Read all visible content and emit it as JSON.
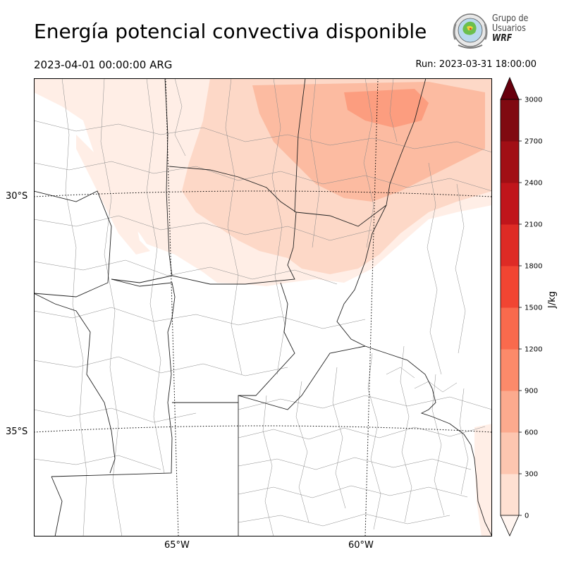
{
  "title": "Energía potencial convectiva disponible",
  "valid_time": "2023-04-01 00:00:00 ARG",
  "run": "Run: 2023-03-31 18:00:00",
  "logo": {
    "line1": "Grupo de",
    "line2": "Usuarios",
    "line3": "WRF"
  },
  "axes": {
    "lat_labels": [
      "30°S",
      "35°S"
    ],
    "lon_labels": [
      "65°W",
      "60°W"
    ]
  },
  "colorbar": {
    "label": "J/kg",
    "ticks": [
      "0",
      "300",
      "600",
      "900",
      "1200",
      "1500",
      "1800",
      "2100",
      "2400",
      "2700",
      "3000"
    ],
    "colors": [
      "#fff5f0",
      "#fee0d2",
      "#fdc6b0",
      "#fcaa8e",
      "#fc8a6a",
      "#f96a4d",
      "#f14532",
      "#de2b25",
      "#c0151b",
      "#a10f15",
      "#800a11",
      "#67000d"
    ]
  },
  "colors": {
    "cape_low": "#ffeee6",
    "cape_mid": "#fdd8c7",
    "cape_high": "#fcbba1",
    "cape_peak": "#fc9d7f"
  }
}
